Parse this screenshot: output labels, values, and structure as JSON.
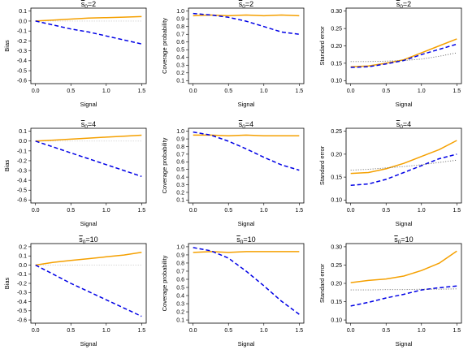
{
  "colors": {
    "orange": "#f5a000",
    "blue": "#0000e6",
    "ref": "#555555",
    "grey": "#bbbbbb"
  },
  "chart_data": [
    {
      "type": "line",
      "title": "s0=2",
      "title_base": "s",
      "title_sub": "0",
      "title_value": "=2",
      "xlabel": "Signal",
      "ylabel": "Bias",
      "xlim": [
        0,
        1.5
      ],
      "ylim": [
        -0.6,
        0.1
      ],
      "xticks": [
        0,
        0.5,
        1,
        1.5
      ],
      "xtick_labels": [
        "0.0",
        "0.5",
        "1.0",
        "1.5"
      ],
      "yticks": [
        -0.6,
        -0.5,
        -0.4,
        -0.3,
        -0.2,
        -0.1,
        0,
        0.1
      ],
      "ytick_labels": [
        "-0.6",
        "-0.5",
        "-0.4",
        "-0.3",
        "-0.2",
        "-0.1",
        "0.0",
        "0.1"
      ],
      "reference": 0,
      "ref_style": "grey",
      "series": [
        {
          "color": "orange",
          "dash": false,
          "x": [
            0,
            0.25,
            0.5,
            0.75,
            1,
            1.25,
            1.5
          ],
          "y": [
            0,
            0.01,
            0.02,
            0.03,
            0.035,
            0.04,
            0.045
          ]
        },
        {
          "color": "blue",
          "dash": true,
          "x": [
            0,
            0.25,
            0.5,
            0.75,
            1,
            1.25,
            1.5
          ],
          "y": [
            0,
            -0.04,
            -0.08,
            -0.11,
            -0.15,
            -0.19,
            -0.23
          ]
        }
      ]
    },
    {
      "type": "line",
      "title": "s0=2",
      "title_base": "s",
      "title_sub": "0",
      "title_value": "=2",
      "xlabel": "Signal",
      "ylabel": "Coverage probability",
      "xlim": [
        0,
        1.5
      ],
      "ylim": [
        0.1,
        1.0
      ],
      "xticks": [
        0,
        0.5,
        1,
        1.5
      ],
      "xtick_labels": [
        "0.0",
        "0.5",
        "1.0",
        "1.5"
      ],
      "yticks": [
        0.1,
        0.2,
        0.3,
        0.4,
        0.5,
        0.6,
        0.7,
        0.8,
        0.9,
        1.0
      ],
      "ytick_labels": [
        "0.1",
        "0.2",
        "0.3",
        "0.4",
        "0.5",
        "0.6",
        "0.7",
        "0.8",
        "0.9",
        "1.0"
      ],
      "reference": null,
      "series": [
        {
          "color": "orange",
          "dash": false,
          "x": [
            0,
            0.25,
            0.5,
            0.75,
            1,
            1.25,
            1.5
          ],
          "y": [
            0.94,
            0.95,
            0.94,
            0.95,
            0.94,
            0.95,
            0.94
          ]
        },
        {
          "color": "blue",
          "dash": true,
          "x": [
            0,
            0.25,
            0.5,
            0.75,
            1,
            1.25,
            1.5
          ],
          "y": [
            0.97,
            0.95,
            0.92,
            0.87,
            0.8,
            0.73,
            0.7
          ]
        }
      ]
    },
    {
      "type": "line",
      "title": "s0=2",
      "title_base": "s",
      "title_sub": "0",
      "title_value": "=2",
      "xlabel": "Signal",
      "ylabel": "Standard error",
      "xlim": [
        0,
        1.5
      ],
      "ylim": [
        0.1,
        0.3
      ],
      "xticks": [
        0,
        0.5,
        1,
        1.5
      ],
      "xtick_labels": [
        "0.0",
        "0.5",
        "1.0",
        "1.5"
      ],
      "yticks": [
        0.1,
        0.15,
        0.2,
        0.25,
        0.3
      ],
      "ytick_labels": [
        "0.10",
        "0.15",
        "0.20",
        "0.25",
        "0.30"
      ],
      "reference": null,
      "series": [
        {
          "color": "orange",
          "dash": false,
          "x": [
            0,
            0.25,
            0.5,
            0.75,
            1,
            1.25,
            1.5
          ],
          "y": [
            0.14,
            0.142,
            0.15,
            0.16,
            0.18,
            0.2,
            0.22
          ]
        },
        {
          "color": "blue",
          "dash": true,
          "x": [
            0,
            0.25,
            0.5,
            0.75,
            1,
            1.25,
            1.5
          ],
          "y": [
            0.138,
            0.14,
            0.148,
            0.158,
            0.175,
            0.19,
            0.205
          ]
        },
        {
          "color": "ref",
          "dash": "dot",
          "x": [
            0,
            0.25,
            0.5,
            0.75,
            1,
            1.25,
            1.5
          ],
          "y": [
            0.155,
            0.155,
            0.156,
            0.158,
            0.162,
            0.17,
            0.18
          ]
        }
      ]
    },
    {
      "type": "line",
      "title": "s0=4",
      "title_base": "s",
      "title_sub": "0",
      "title_value": "=4",
      "xlabel": "Signal",
      "ylabel": "Bias",
      "xlim": [
        0,
        1.5
      ],
      "ylim": [
        -0.6,
        0.1
      ],
      "xticks": [
        0,
        0.5,
        1,
        1.5
      ],
      "xtick_labels": [
        "0.0",
        "0.5",
        "1.0",
        "1.5"
      ],
      "yticks": [
        -0.6,
        -0.5,
        -0.4,
        -0.3,
        -0.2,
        -0.1,
        0,
        0.1
      ],
      "ytick_labels": [
        "-0.6",
        "-0.5",
        "-0.4",
        "-0.3",
        "-0.2",
        "-0.1",
        "0.0",
        "0.1"
      ],
      "reference": 0,
      "ref_style": "grey",
      "series": [
        {
          "color": "orange",
          "dash": false,
          "x": [
            0,
            0.25,
            0.5,
            0.75,
            1,
            1.25,
            1.5
          ],
          "y": [
            0,
            0.01,
            0.02,
            0.03,
            0.04,
            0.05,
            0.06
          ]
        },
        {
          "color": "blue",
          "dash": true,
          "x": [
            0,
            0.25,
            0.5,
            0.75,
            1,
            1.25,
            1.5
          ],
          "y": [
            0,
            -0.06,
            -0.12,
            -0.18,
            -0.24,
            -0.3,
            -0.36
          ]
        }
      ]
    },
    {
      "type": "line",
      "title": "s0=4",
      "title_base": "s",
      "title_sub": "0",
      "title_value": "=4",
      "xlabel": "Signal",
      "ylabel": "Coverage probability",
      "xlim": [
        0,
        1.5
      ],
      "ylim": [
        0.1,
        1.0
      ],
      "xticks": [
        0,
        0.5,
        1,
        1.5
      ],
      "xtick_labels": [
        "0.0",
        "0.5",
        "1.0",
        "1.5"
      ],
      "yticks": [
        0.1,
        0.2,
        0.3,
        0.4,
        0.5,
        0.6,
        0.7,
        0.8,
        0.9,
        1.0
      ],
      "ytick_labels": [
        "0.1",
        "0.2",
        "0.3",
        "0.4",
        "0.5",
        "0.6",
        "0.7",
        "0.8",
        "0.9",
        "1.0"
      ],
      "reference": null,
      "series": [
        {
          "color": "orange",
          "dash": false,
          "x": [
            0,
            0.25,
            0.5,
            0.75,
            1,
            1.25,
            1.5
          ],
          "y": [
            0.95,
            0.95,
            0.94,
            0.95,
            0.94,
            0.94,
            0.94
          ]
        },
        {
          "color": "blue",
          "dash": true,
          "x": [
            0,
            0.25,
            0.5,
            0.75,
            1,
            1.25,
            1.5
          ],
          "y": [
            0.99,
            0.95,
            0.87,
            0.77,
            0.66,
            0.56,
            0.49
          ]
        }
      ]
    },
    {
      "type": "line",
      "title": "s0=4",
      "title_base": "s",
      "title_sub": "0",
      "title_value": "=4",
      "xlabel": "Signal",
      "ylabel": "Standard error",
      "xlim": [
        0,
        1.5
      ],
      "ylim": [
        0.1,
        0.25
      ],
      "xticks": [
        0,
        0.5,
        1,
        1.5
      ],
      "xtick_labels": [
        "0.0",
        "0.5",
        "1.0",
        "1.5"
      ],
      "yticks": [
        0.1,
        0.15,
        0.2,
        0.25
      ],
      "ytick_labels": [
        "0.10",
        "0.15",
        "0.20",
        "0.25"
      ],
      "reference": null,
      "series": [
        {
          "color": "orange",
          "dash": false,
          "x": [
            0,
            0.25,
            0.5,
            0.75,
            1,
            1.25,
            1.5
          ],
          "y": [
            0.158,
            0.16,
            0.168,
            0.18,
            0.195,
            0.21,
            0.23
          ]
        },
        {
          "color": "blue",
          "dash": true,
          "x": [
            0,
            0.25,
            0.5,
            0.75,
            1,
            1.25,
            1.5
          ],
          "y": [
            0.132,
            0.135,
            0.145,
            0.16,
            0.175,
            0.19,
            0.2
          ]
        },
        {
          "color": "ref",
          "dash": "dot",
          "x": [
            0,
            0.25,
            0.5,
            0.75,
            1,
            1.25,
            1.5
          ],
          "y": [
            0.165,
            0.167,
            0.17,
            0.173,
            0.177,
            0.182,
            0.187
          ]
        }
      ]
    },
    {
      "type": "line",
      "title": "s0=10",
      "title_base": "s",
      "title_sub": "0",
      "title_value": "=10",
      "xlabel": "Signal",
      "ylabel": "Bias",
      "xlim": [
        0,
        1.5
      ],
      "ylim": [
        -0.6,
        0.2
      ],
      "xticks": [
        0,
        0.5,
        1,
        1.5
      ],
      "xtick_labels": [
        "0.0",
        "0.5",
        "1.0",
        "1.5"
      ],
      "yticks": [
        -0.6,
        -0.5,
        -0.4,
        -0.3,
        -0.2,
        -0.1,
        0,
        0.1,
        0.2
      ],
      "ytick_labels": [
        "-0.6",
        "-0.5",
        "-0.4",
        "-0.3",
        "-0.2",
        "-0.1",
        "0.0",
        "0.1",
        "0.2"
      ],
      "reference": 0,
      "ref_style": "grey",
      "series": [
        {
          "color": "orange",
          "dash": false,
          "x": [
            0,
            0.25,
            0.5,
            0.75,
            1,
            1.25,
            1.5
          ],
          "y": [
            0,
            0.03,
            0.05,
            0.07,
            0.09,
            0.11,
            0.14
          ]
        },
        {
          "color": "blue",
          "dash": true,
          "x": [
            0,
            0.25,
            0.5,
            0.75,
            1,
            1.25,
            1.5
          ],
          "y": [
            0,
            -0.1,
            -0.2,
            -0.29,
            -0.38,
            -0.47,
            -0.56
          ]
        }
      ]
    },
    {
      "type": "line",
      "title": "s0=10",
      "title_base": "s",
      "title_sub": "0",
      "title_value": "=10",
      "xlabel": "Signal",
      "ylabel": "Coverage probability",
      "xlim": [
        0,
        1.5
      ],
      "ylim": [
        0.1,
        1.0
      ],
      "xticks": [
        0,
        0.5,
        1,
        1.5
      ],
      "xtick_labels": [
        "0.0",
        "0.5",
        "1.0",
        "1.5"
      ],
      "yticks": [
        0.1,
        0.2,
        0.3,
        0.4,
        0.5,
        0.6,
        0.7,
        0.8,
        0.9,
        1.0
      ],
      "ytick_labels": [
        "0.1",
        "0.2",
        "0.3",
        "0.4",
        "0.5",
        "0.6",
        "0.7",
        "0.8",
        "0.9",
        "1.0"
      ],
      "reference": null,
      "series": [
        {
          "color": "orange",
          "dash": false,
          "x": [
            0,
            0.25,
            0.5,
            0.75,
            1,
            1.25,
            1.5
          ],
          "y": [
            0.93,
            0.94,
            0.93,
            0.94,
            0.94,
            0.94,
            0.94
          ]
        },
        {
          "color": "blue",
          "dash": true,
          "x": [
            0,
            0.25,
            0.5,
            0.75,
            1,
            1.25,
            1.5
          ],
          "y": [
            0.99,
            0.95,
            0.86,
            0.7,
            0.52,
            0.33,
            0.17
          ]
        }
      ]
    },
    {
      "type": "line",
      "title": "s0=10",
      "title_base": "s",
      "title_sub": "0",
      "title_value": "=10",
      "xlabel": "Signal",
      "ylabel": "Standard error",
      "xlim": [
        0,
        1.5
      ],
      "ylim": [
        0.1,
        0.3
      ],
      "xticks": [
        0,
        0.5,
        1,
        1.5
      ],
      "xtick_labels": [
        "0.0",
        "0.5",
        "1.0",
        "1.5"
      ],
      "yticks": [
        0.1,
        0.15,
        0.2,
        0.25,
        0.3
      ],
      "ytick_labels": [
        "0.10",
        "0.15",
        "0.20",
        "0.25",
        "0.30"
      ],
      "reference": null,
      "series": [
        {
          "color": "orange",
          "dash": false,
          "x": [
            0,
            0.25,
            0.5,
            0.75,
            1,
            1.25,
            1.5
          ],
          "y": [
            0.202,
            0.208,
            0.212,
            0.22,
            0.235,
            0.255,
            0.288
          ]
        },
        {
          "color": "blue",
          "dash": true,
          "x": [
            0,
            0.25,
            0.5,
            0.75,
            1,
            1.25,
            1.5
          ],
          "y": [
            0.138,
            0.148,
            0.16,
            0.17,
            0.182,
            0.188,
            0.193
          ]
        },
        {
          "color": "ref",
          "dash": "dot",
          "x": [
            0,
            0.25,
            0.5,
            0.75,
            1,
            1.25,
            1.5
          ],
          "y": [
            0.182,
            0.182,
            0.183,
            0.183,
            0.184,
            0.184,
            0.185
          ]
        }
      ]
    }
  ]
}
